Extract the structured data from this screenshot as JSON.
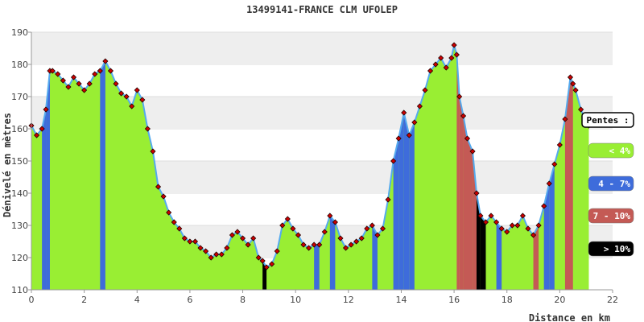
{
  "chart_data": {
    "type": "area",
    "title": "13499141-FRANCE CLM UFOLEP",
    "xlabel": "Distance en km",
    "ylabel": "Dénivelé en mètres",
    "xlim": [
      0,
      22
    ],
    "ylim": [
      110,
      190
    ],
    "x_ticks": [
      0,
      2,
      4,
      6,
      8,
      10,
      12,
      14,
      16,
      18,
      20,
      22
    ],
    "y_ticks": [
      110,
      120,
      130,
      140,
      150,
      160,
      170,
      180,
      190
    ],
    "grid": "horizontal bands",
    "legend": {
      "position": "right",
      "title": "Pentes :",
      "entries": [
        {
          "label": "< 4%",
          "color": "#99ee33"
        },
        {
          "label": "4 - 7%",
          "color": "#3e6cdb"
        },
        {
          "label": "7 - 10%",
          "color": "#c45a55"
        },
        {
          "label": "> 10%",
          "color": "#000000"
        }
      ]
    },
    "colors": {
      "fill": "#99ee33",
      "line": "#55aaee",
      "marker": "#cc0000",
      "band": "#eeeeee"
    },
    "series": [
      {
        "x": [
          0,
          0.2,
          0.4,
          0.55,
          0.7,
          0.8,
          1.0,
          1.2,
          1.4,
          1.6,
          1.8,
          2.0,
          2.2,
          2.4,
          2.6,
          2.8,
          3.0,
          3.2,
          3.4,
          3.6,
          3.8,
          4.0,
          4.2,
          4.4,
          4.6,
          4.8,
          5.0,
          5.2,
          5.4,
          5.6,
          5.8,
          6.0,
          6.2,
          6.4,
          6.6,
          6.8,
          7.0,
          7.2,
          7.4,
          7.6,
          7.8,
          8.0,
          8.2,
          8.4,
          8.6,
          8.75,
          8.9,
          9.1,
          9.3,
          9.5,
          9.7,
          9.9,
          10.1,
          10.3,
          10.5,
          10.7,
          10.9,
          11.1,
          11.3,
          11.5,
          11.7,
          11.9,
          12.1,
          12.3,
          12.5,
          12.7,
          12.9,
          13.1,
          13.3,
          13.5,
          13.7,
          13.9,
          14.1,
          14.3,
          14.5,
          14.7,
          14.9,
          15.1,
          15.3,
          15.5,
          15.7,
          15.9,
          16.0,
          16.1,
          16.2,
          16.35,
          16.5,
          16.7,
          16.85,
          17.0,
          17.2,
          17.4,
          17.6,
          17.8,
          18.0,
          18.2,
          18.4,
          18.6,
          18.8,
          19.0,
          19.2,
          19.4,
          19.6,
          19.8,
          20.0,
          20.2,
          20.4,
          20.5,
          20.6,
          20.8,
          21.0,
          21.1
        ],
        "y": [
          161,
          158,
          160,
          166,
          178,
          178,
          177,
          175,
          173,
          176,
          174,
          172,
          174,
          177,
          178,
          181,
          178,
          174,
          171,
          170,
          167,
          172,
          169,
          160,
          153,
          142,
          139,
          134,
          131,
          129,
          126,
          125,
          125,
          123,
          122,
          120,
          121,
          121,
          123,
          127,
          128,
          126,
          124,
          126,
          120,
          119,
          117,
          118,
          122,
          130,
          132,
          129,
          127,
          124,
          123,
          124,
          124,
          128,
          133,
          131,
          126,
          123,
          124,
          125,
          126,
          129,
          130,
          127,
          129,
          138,
          150,
          157,
          165,
          158,
          162,
          167,
          172,
          178,
          180,
          182,
          179,
          182,
          186,
          183,
          170,
          164,
          157,
          153,
          140,
          133,
          131,
          133,
          131,
          129,
          128,
          130,
          130,
          133,
          129,
          127,
          130,
          136,
          143,
          149,
          155,
          163,
          176,
          174,
          172,
          166,
          162,
          161
        ],
        "slopes": [
          1,
          1,
          2,
          2,
          1,
          1,
          1,
          1,
          1,
          1,
          1,
          1,
          1,
          1,
          2,
          1,
          1,
          1,
          1,
          1,
          1,
          1,
          1,
          1,
          1,
          1,
          1,
          1,
          1,
          1,
          1,
          1,
          1,
          1,
          1,
          1,
          1,
          1,
          1,
          1,
          1,
          1,
          1,
          1,
          1,
          4,
          1,
          1,
          1,
          1,
          1,
          1,
          1,
          1,
          1,
          2,
          1,
          1,
          2,
          1,
          1,
          1,
          1,
          1,
          1,
          1,
          2,
          1,
          1,
          1,
          2,
          2,
          2,
          2,
          1,
          1,
          1,
          1,
          1,
          1,
          1,
          1,
          1,
          3,
          3,
          3,
          3,
          3,
          4,
          4,
          1,
          1,
          2,
          1,
          1,
          1,
          1,
          1,
          1,
          3,
          1,
          2,
          2,
          1,
          1,
          3,
          3,
          1,
          1,
          1,
          1,
          1
        ]
      }
    ]
  }
}
